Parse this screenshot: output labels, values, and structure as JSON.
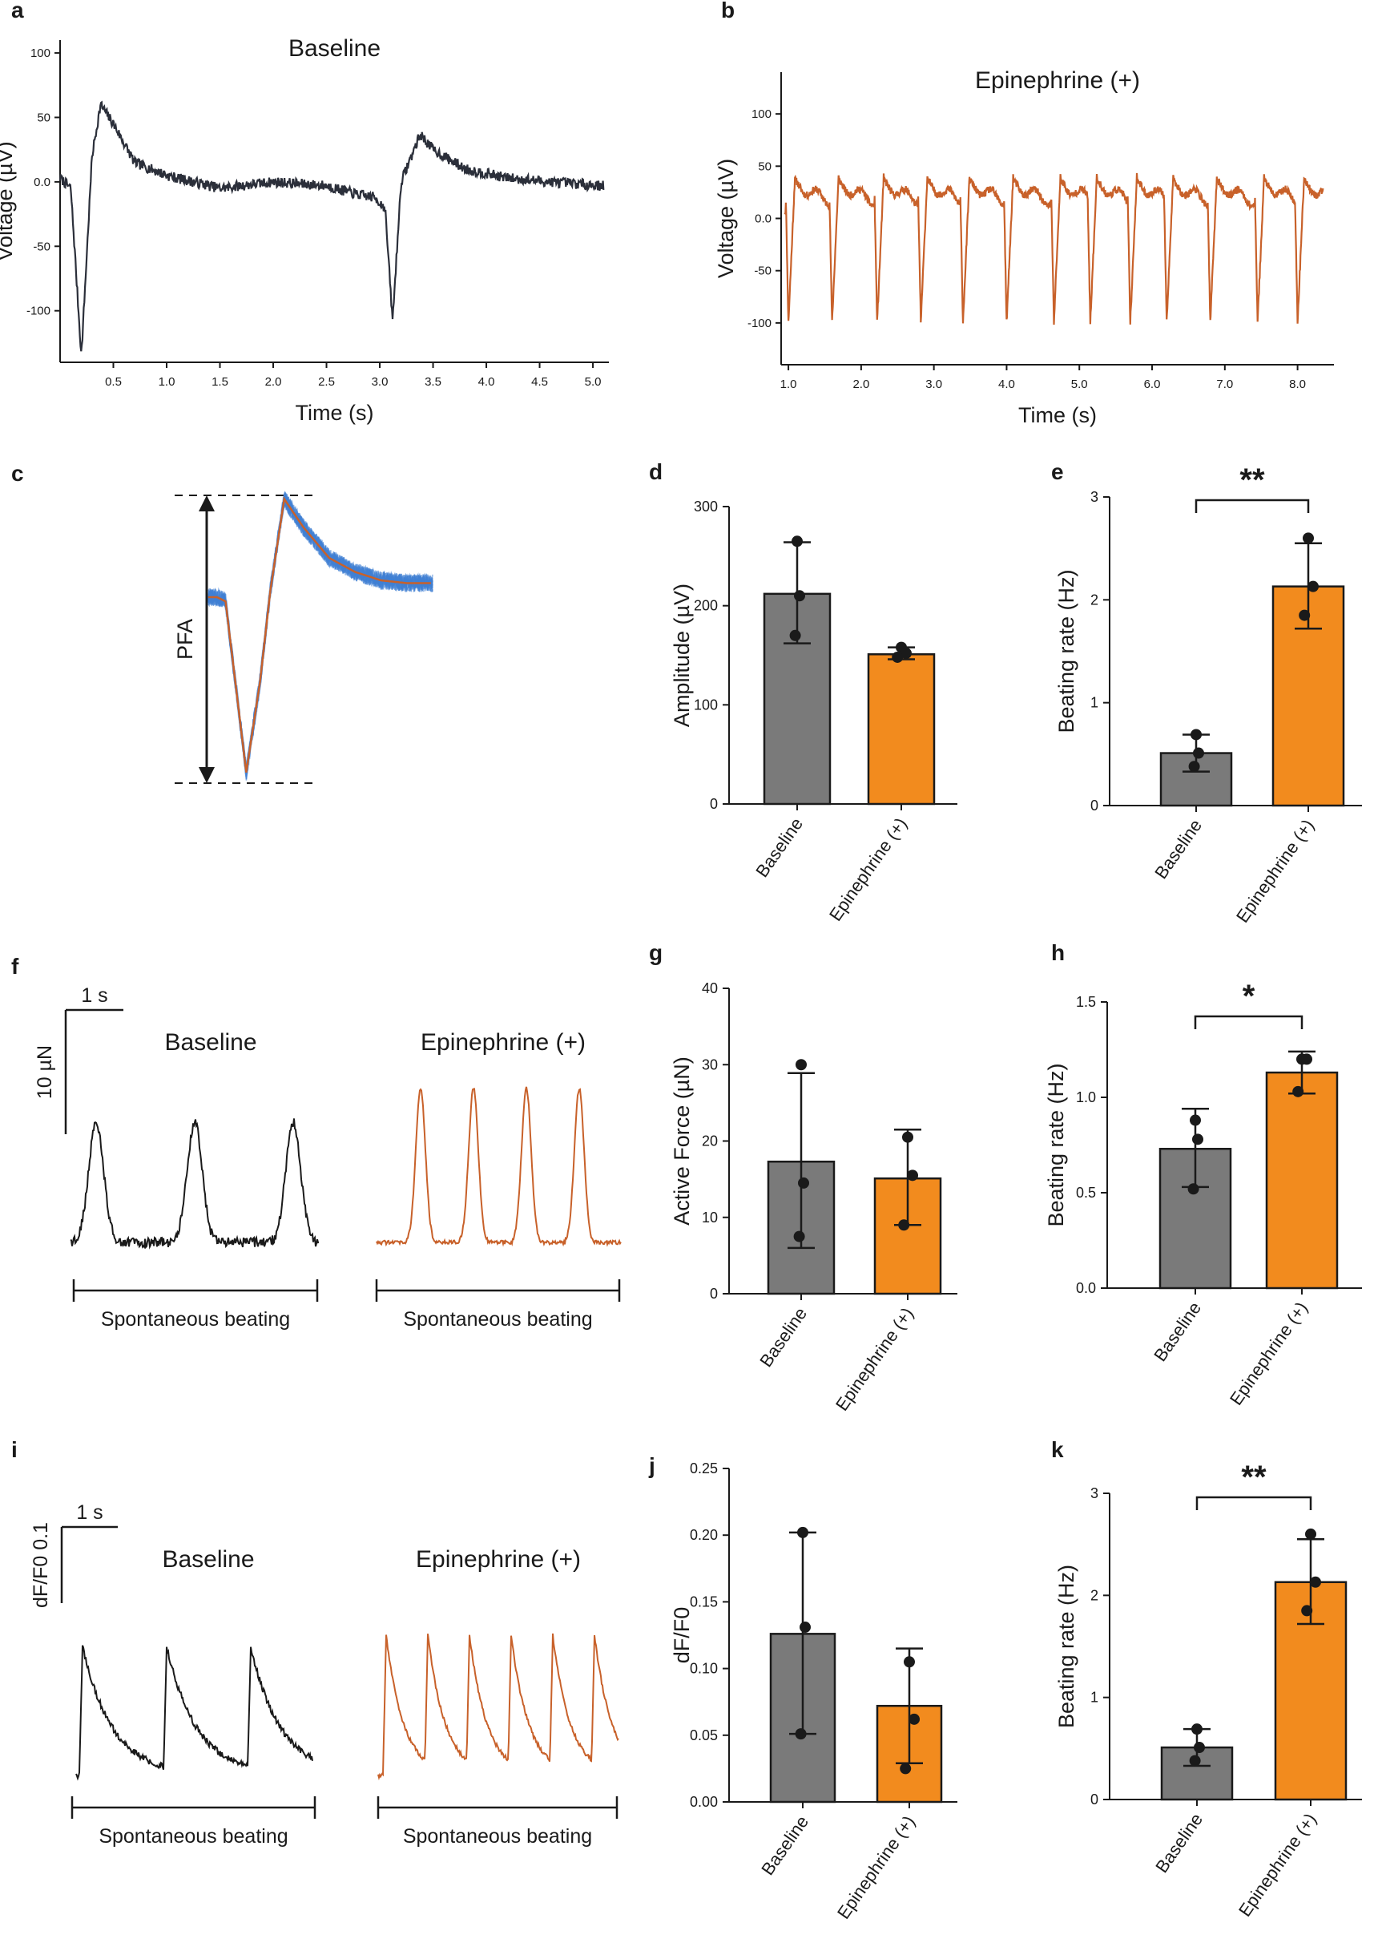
{
  "chart_data": [
    {
      "panel": "a",
      "type": "line",
      "title": "Baseline",
      "xlabel": "Time (s)",
      "ylabel": "Voltage (µV)",
      "xlim": [
        0,
        5.15
      ],
      "ylim": [
        -140,
        110
      ],
      "xticks": [
        0.5,
        1.0,
        1.5,
        2.0,
        2.5,
        3.0,
        3.5,
        4.0,
        4.5,
        5.0
      ],
      "xticklabels": [
        "0.5",
        "1.0",
        "1.5",
        "2.0",
        "2.5",
        "3.0",
        "3.5",
        "4.0",
        "4.5",
        "5.0"
      ],
      "yticks": [
        100,
        50,
        0,
        -50,
        -100
      ],
      "yticklabels": [
        "100",
        "50",
        "0.0",
        "-50",
        "-100"
      ],
      "color": "#2b2f3a",
      "series": [
        {
          "name": "Baseline",
          "x": [
            0,
            0.1,
            0.2,
            0.3,
            0.38,
            0.5,
            0.7,
            1.0,
            1.5,
            2.0,
            2.5,
            2.8,
            2.95,
            3.05,
            3.12,
            3.2,
            3.38,
            3.5,
            3.8,
            4.2,
            4.6,
            5.1
          ],
          "y": [
            3,
            -5,
            -135,
            20,
            60,
            45,
            15,
            5,
            -5,
            0,
            -3,
            -10,
            -12,
            -20,
            -108,
            0,
            37,
            25,
            10,
            3,
            0,
            -3
          ]
        }
      ]
    },
    {
      "panel": "b",
      "type": "line",
      "title": "Epinephrine (+)",
      "xlabel": "Time (s)",
      "ylabel": "Voltage (µV)",
      "xlim": [
        0.9,
        8.5
      ],
      "ylim": [
        -140,
        140
      ],
      "xticks": [
        1.0,
        2.0,
        3.0,
        4.0,
        5.0,
        6.0,
        7.0,
        8.0
      ],
      "xticklabels": [
        "1.0",
        "2.0",
        "3.0",
        "4.0",
        "5.0",
        "6.0",
        "7.0",
        "8.0"
      ],
      "yticks": [
        100,
        50,
        0,
        -50,
        -100
      ],
      "yticklabels": [
        "100",
        "50",
        "0.0",
        "-50",
        "-100"
      ],
      "color": "#c8612a",
      "series": [
        {
          "name": "Epinephrine (+)",
          "beats_at_s": [
            1.0,
            1.6,
            2.22,
            2.82,
            3.4,
            4.0,
            4.65,
            5.15,
            5.7,
            6.2,
            6.8,
            7.45,
            8.0
          ],
          "peak_uV": 35,
          "trough_uV": -100
        }
      ]
    },
    {
      "panel": "c",
      "type": "line",
      "label": "PFA",
      "series_colors": [
        "#3f7fd4",
        "#c8612a"
      ],
      "description_y": [
        0,
        0,
        -3,
        -125,
        -60,
        5,
        70,
        50,
        28,
        18,
        12,
        10,
        10
      ],
      "description_x": [
        0,
        0.05,
        0.1,
        0.22,
        0.3,
        0.36,
        0.44,
        0.55,
        0.7,
        0.85,
        1.0,
        1.15,
        1.3
      ]
    },
    {
      "panel": "d",
      "type": "bar",
      "ylabel": "Amplitude (µV)",
      "ylim": [
        0,
        300
      ],
      "yticks": [
        0,
        100,
        200,
        300
      ],
      "yticklabels": [
        "0",
        "100",
        "200",
        "300"
      ],
      "categories": [
        "Baseline",
        "Epinephrine (+)"
      ],
      "values": [
        212,
        151
      ],
      "err_low": [
        162,
        146
      ],
      "err_high": [
        264,
        158
      ],
      "points": [
        [
          265,
          210,
          170
        ],
        [
          158,
          152,
          148
        ]
      ],
      "colors": [
        "#7a7a7a",
        "#f28b1e"
      ]
    },
    {
      "panel": "e",
      "type": "bar",
      "ylabel": "Beating rate (Hz)",
      "ylim": [
        0,
        3
      ],
      "yticks": [
        0,
        1,
        2,
        3
      ],
      "yticklabels": [
        "0",
        "1",
        "2",
        "3"
      ],
      "categories": [
        "Baseline",
        "Epinephrine (+)"
      ],
      "values": [
        0.51,
        2.13
      ],
      "err_low": [
        0.33,
        1.72
      ],
      "err_high": [
        0.69,
        2.55
      ],
      "points": [
        [
          0.69,
          0.51,
          0.38
        ],
        [
          2.6,
          2.13,
          1.85
        ]
      ],
      "colors": [
        "#7a7a7a",
        "#f28b1e"
      ],
      "significance": "**"
    },
    {
      "panel": "f",
      "type": "line",
      "scalebar_x": "1 s",
      "scalebar_y": "10 µN",
      "titles": [
        "Baseline",
        "Epinephrine (+)"
      ],
      "footer": "Spontaneous beating",
      "colors": [
        "#1a1a1a",
        "#c8612a"
      ],
      "series": [
        {
          "name": "Baseline",
          "beats_per_s": 0.72,
          "n_beats": 3
        },
        {
          "name": "Epinephrine (+)",
          "beats_per_s": 1.13,
          "n_beats": 4
        }
      ]
    },
    {
      "panel": "g",
      "type": "bar",
      "ylabel": "Active Force (µN)",
      "ylim": [
        0,
        40
      ],
      "yticks": [
        0,
        10,
        20,
        30,
        40
      ],
      "yticklabels": [
        "0",
        "10",
        "20",
        "30",
        "40"
      ],
      "categories": [
        "Baseline",
        "Epinephrine (+)"
      ],
      "values": [
        17.3,
        15.1
      ],
      "err_low": [
        6.0,
        9.0
      ],
      "err_high": [
        28.9,
        21.5
      ],
      "points": [
        [
          30,
          14.5,
          7.5
        ],
        [
          20.5,
          15.5,
          9.0
        ]
      ],
      "colors": [
        "#7a7a7a",
        "#f28b1e"
      ]
    },
    {
      "panel": "h",
      "type": "bar",
      "ylabel": "Beating rate (Hz)",
      "ylim": [
        0,
        1.5
      ],
      "yticks": [
        0,
        0.5,
        1.0,
        1.5
      ],
      "yticklabels": [
        "0.0",
        "0.5",
        "1.0",
        "1.5"
      ],
      "categories": [
        "Baseline",
        "Epinephrine (+)"
      ],
      "values": [
        0.73,
        1.13
      ],
      "err_low": [
        0.53,
        1.02
      ],
      "err_high": [
        0.94,
        1.24
      ],
      "points": [
        [
          0.88,
          0.78,
          0.52
        ],
        [
          1.2,
          1.2,
          1.03
        ]
      ],
      "colors": [
        "#7a7a7a",
        "#f28b1e"
      ],
      "significance": "*"
    },
    {
      "panel": "i",
      "type": "line",
      "scalebar_x": "1 s",
      "scalebar_y": "dF/F0 0.1",
      "titles": [
        "Baseline",
        "Epinephrine (+)"
      ],
      "footer": "Spontaneous beating",
      "colors": [
        "#1a1a1a",
        "#c8612a"
      ],
      "series": [
        {
          "name": "Baseline",
          "beats_per_s": 0.51,
          "n_beats": 3
        },
        {
          "name": "Epinephrine (+)",
          "beats_per_s": 2.13,
          "n_beats": 6
        }
      ]
    },
    {
      "panel": "j",
      "type": "bar",
      "ylabel": "dF/F0",
      "ylim": [
        0,
        0.25
      ],
      "yticks": [
        0,
        0.05,
        0.1,
        0.15,
        0.2,
        0.25
      ],
      "yticklabels": [
        "0.00",
        "0.05",
        "0.10",
        "0.15",
        "0.20",
        "0.25"
      ],
      "categories": [
        "Baseline",
        "Epinephrine (+)"
      ],
      "values": [
        0.126,
        0.072
      ],
      "err_low": [
        0.051,
        0.029
      ],
      "err_high": [
        0.202,
        0.115
      ],
      "points": [
        [
          0.202,
          0.131,
          0.051
        ],
        [
          0.105,
          0.062,
          0.025
        ]
      ],
      "colors": [
        "#7a7a7a",
        "#f28b1e"
      ]
    },
    {
      "panel": "k",
      "type": "bar",
      "ylabel": "Beating rate (Hz)",
      "ylim": [
        0,
        3
      ],
      "yticks": [
        0,
        1,
        2,
        3
      ],
      "yticklabels": [
        "0",
        "1",
        "2",
        "3"
      ],
      "categories": [
        "Baseline",
        "Epinephrine (+)"
      ],
      "values": [
        0.51,
        2.13
      ],
      "err_low": [
        0.33,
        1.72
      ],
      "err_high": [
        0.69,
        2.55
      ],
      "points": [
        [
          0.69,
          0.51,
          0.38
        ],
        [
          2.6,
          2.13,
          1.85
        ]
      ],
      "colors": [
        "#7a7a7a",
        "#f28b1e"
      ],
      "significance": "**"
    }
  ]
}
